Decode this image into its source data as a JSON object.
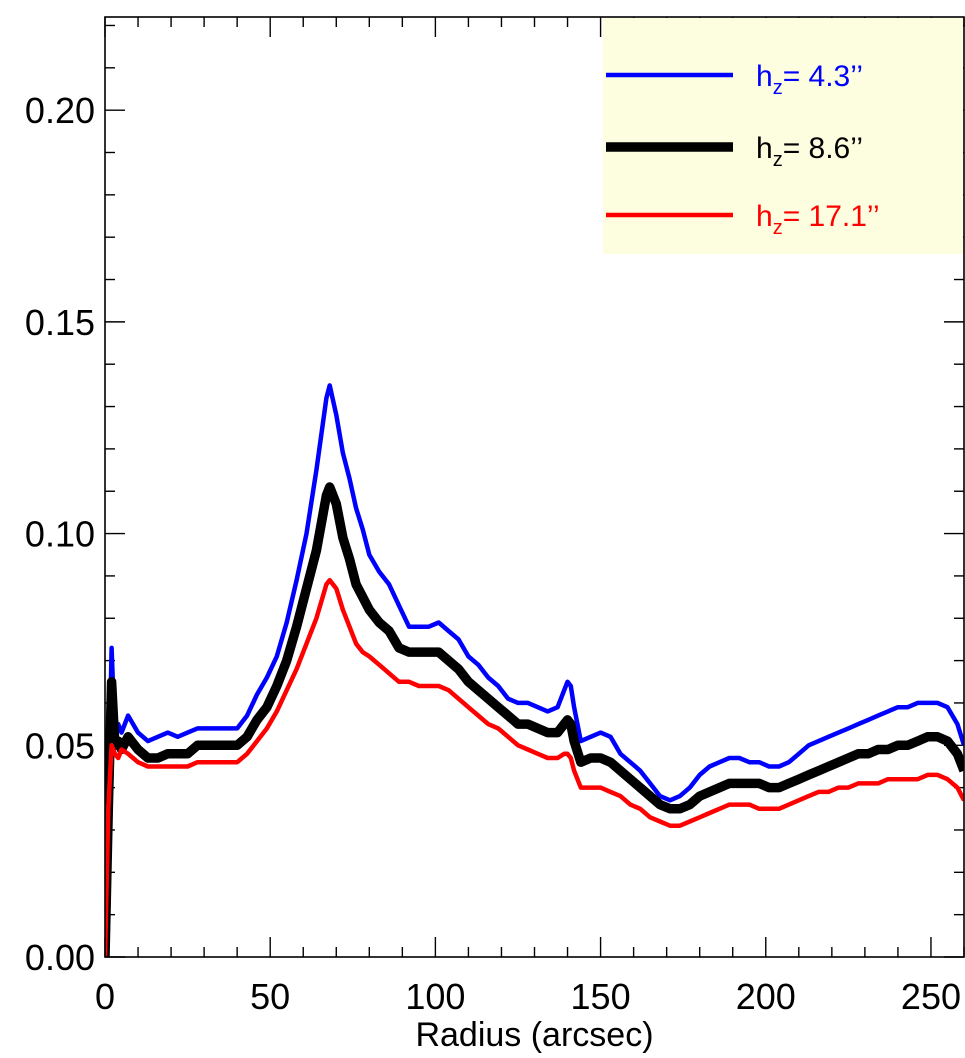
{
  "chart_data": {
    "type": "line",
    "title": "",
    "xlabel": "Radius (arcsec)",
    "ylabel": "",
    "xlim": [
      0,
      260
    ],
    "ylim": [
      0,
      0.222
    ],
    "xticks": [
      0,
      50,
      100,
      150,
      200,
      250
    ],
    "xtick_labels": [
      "0",
      "50",
      "100",
      "150",
      "200",
      "250"
    ],
    "yticks": [
      0.0,
      0.05,
      0.1,
      0.15,
      0.2
    ],
    "ytick_labels": [
      "0.00",
      "0.05",
      "0.10",
      "0.15",
      "0.20"
    ],
    "grid": false,
    "legend_position": "top-right",
    "legend_background": "#fdfde0",
    "series": [
      {
        "key": "hz43",
        "legend_var": "h",
        "legend_sub": "z",
        "legend_value": "=   4.3’’",
        "color": "#0000ff",
        "x": [
          0,
          1,
          2,
          3,
          4,
          5,
          7,
          10,
          13,
          16,
          19,
          22,
          25,
          28,
          31,
          34,
          37,
          40,
          43,
          46,
          49,
          52,
          55,
          58,
          61,
          64,
          67,
          68,
          70,
          72,
          74,
          76,
          78,
          80,
          83,
          86,
          89,
          92,
          95,
          98,
          101,
          104,
          107,
          110,
          113,
          116,
          119,
          122,
          125,
          128,
          131,
          134,
          137,
          139,
          140,
          141,
          142,
          144,
          147,
          150,
          153,
          156,
          159,
          162,
          165,
          168,
          171,
          174,
          177,
          180,
          183,
          186,
          189,
          192,
          195,
          198,
          201,
          204,
          207,
          210,
          213,
          216,
          219,
          222,
          225,
          228,
          231,
          234,
          237,
          240,
          243,
          246,
          249,
          252,
          255,
          258,
          260
        ],
        "values": [
          0.0,
          0.035,
          0.073,
          0.052,
          0.055,
          0.053,
          0.057,
          0.053,
          0.051,
          0.052,
          0.053,
          0.052,
          0.053,
          0.054,
          0.054,
          0.054,
          0.054,
          0.054,
          0.057,
          0.062,
          0.066,
          0.071,
          0.079,
          0.089,
          0.1,
          0.115,
          0.132,
          0.135,
          0.128,
          0.119,
          0.113,
          0.106,
          0.101,
          0.095,
          0.091,
          0.088,
          0.083,
          0.078,
          0.078,
          0.078,
          0.079,
          0.077,
          0.075,
          0.071,
          0.069,
          0.066,
          0.064,
          0.061,
          0.06,
          0.06,
          0.059,
          0.058,
          0.059,
          0.063,
          0.065,
          0.064,
          0.059,
          0.051,
          0.052,
          0.053,
          0.052,
          0.048,
          0.046,
          0.044,
          0.041,
          0.038,
          0.037,
          0.038,
          0.04,
          0.043,
          0.045,
          0.046,
          0.047,
          0.047,
          0.046,
          0.046,
          0.045,
          0.045,
          0.046,
          0.048,
          0.05,
          0.051,
          0.052,
          0.053,
          0.054,
          0.055,
          0.056,
          0.057,
          0.058,
          0.059,
          0.059,
          0.06,
          0.06,
          0.06,
          0.059,
          0.055,
          0.05
        ]
      },
      {
        "key": "hz86",
        "legend_var": "h",
        "legend_sub": "z",
        "legend_value": "=   8.6’’",
        "color": "#000000",
        "x": [
          0,
          1,
          2,
          3,
          4,
          5,
          7,
          10,
          13,
          16,
          19,
          22,
          25,
          28,
          31,
          34,
          37,
          40,
          43,
          46,
          49,
          52,
          55,
          58,
          61,
          64,
          67,
          68,
          70,
          72,
          74,
          76,
          78,
          80,
          83,
          86,
          89,
          92,
          95,
          98,
          101,
          104,
          107,
          110,
          113,
          116,
          119,
          122,
          125,
          128,
          131,
          134,
          137,
          139,
          140,
          141,
          142,
          144,
          147,
          150,
          153,
          156,
          159,
          162,
          165,
          168,
          171,
          174,
          177,
          180,
          183,
          186,
          189,
          192,
          195,
          198,
          201,
          204,
          207,
          210,
          213,
          216,
          219,
          222,
          225,
          228,
          231,
          234,
          237,
          240,
          243,
          246,
          249,
          252,
          255,
          258,
          260
        ],
        "values": [
          0.0,
          0.035,
          0.065,
          0.05,
          0.051,
          0.049,
          0.052,
          0.049,
          0.047,
          0.047,
          0.048,
          0.048,
          0.048,
          0.05,
          0.05,
          0.05,
          0.05,
          0.05,
          0.052,
          0.056,
          0.059,
          0.064,
          0.07,
          0.078,
          0.087,
          0.096,
          0.109,
          0.111,
          0.107,
          0.099,
          0.094,
          0.088,
          0.085,
          0.082,
          0.079,
          0.077,
          0.073,
          0.072,
          0.072,
          0.072,
          0.072,
          0.07,
          0.068,
          0.065,
          0.063,
          0.061,
          0.059,
          0.057,
          0.055,
          0.055,
          0.054,
          0.053,
          0.053,
          0.055,
          0.056,
          0.055,
          0.051,
          0.046,
          0.047,
          0.047,
          0.046,
          0.044,
          0.042,
          0.04,
          0.038,
          0.036,
          0.035,
          0.035,
          0.036,
          0.038,
          0.039,
          0.04,
          0.041,
          0.041,
          0.041,
          0.041,
          0.04,
          0.04,
          0.041,
          0.042,
          0.043,
          0.044,
          0.045,
          0.046,
          0.047,
          0.048,
          0.048,
          0.049,
          0.049,
          0.05,
          0.05,
          0.051,
          0.052,
          0.052,
          0.051,
          0.048,
          0.044
        ]
      },
      {
        "key": "hz171",
        "legend_var": "h",
        "legend_sub": "z",
        "legend_value": "=  17.1’’",
        "color": "#ff0000",
        "x": [
          0,
          1,
          2,
          3,
          4,
          5,
          7,
          10,
          13,
          16,
          19,
          22,
          25,
          28,
          31,
          34,
          37,
          40,
          43,
          46,
          49,
          52,
          55,
          58,
          61,
          64,
          67,
          68,
          70,
          72,
          74,
          76,
          78,
          80,
          83,
          86,
          89,
          92,
          95,
          98,
          101,
          104,
          107,
          110,
          113,
          116,
          119,
          122,
          125,
          128,
          131,
          134,
          137,
          139,
          140,
          141,
          142,
          144,
          147,
          150,
          153,
          156,
          159,
          162,
          165,
          168,
          171,
          174,
          177,
          180,
          183,
          186,
          189,
          192,
          195,
          198,
          201,
          204,
          207,
          210,
          213,
          216,
          219,
          222,
          225,
          228,
          231,
          234,
          237,
          240,
          243,
          246,
          249,
          252,
          255,
          258,
          260
        ],
        "values": [
          0.0,
          0.035,
          0.05,
          0.048,
          0.047,
          0.049,
          0.048,
          0.046,
          0.045,
          0.045,
          0.045,
          0.045,
          0.045,
          0.046,
          0.046,
          0.046,
          0.046,
          0.046,
          0.048,
          0.051,
          0.054,
          0.058,
          0.063,
          0.068,
          0.074,
          0.08,
          0.088,
          0.089,
          0.087,
          0.082,
          0.078,
          0.074,
          0.072,
          0.071,
          0.069,
          0.067,
          0.065,
          0.065,
          0.064,
          0.064,
          0.064,
          0.063,
          0.061,
          0.059,
          0.057,
          0.055,
          0.054,
          0.052,
          0.05,
          0.049,
          0.048,
          0.047,
          0.047,
          0.048,
          0.048,
          0.047,
          0.044,
          0.04,
          0.04,
          0.04,
          0.039,
          0.038,
          0.036,
          0.035,
          0.033,
          0.032,
          0.031,
          0.031,
          0.032,
          0.033,
          0.034,
          0.035,
          0.036,
          0.036,
          0.036,
          0.035,
          0.035,
          0.035,
          0.036,
          0.037,
          0.038,
          0.039,
          0.039,
          0.04,
          0.04,
          0.041,
          0.041,
          0.041,
          0.042,
          0.042,
          0.042,
          0.042,
          0.043,
          0.043,
          0.042,
          0.04,
          0.037
        ]
      }
    ]
  }
}
